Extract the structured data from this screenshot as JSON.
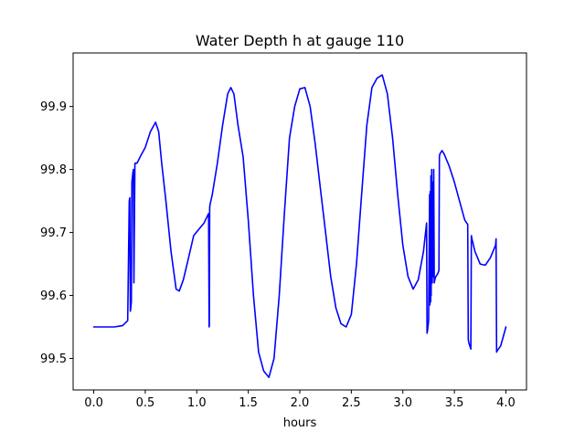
{
  "chart_data": {
    "type": "line",
    "title": "Water Depth h at gauge 110",
    "xlabel": "hours",
    "ylabel": "",
    "xlim": [
      -0.2,
      4.2
    ],
    "ylim": [
      99.45,
      99.985
    ],
    "grid": false,
    "x_ticks": [
      0.0,
      0.5,
      1.0,
      1.5,
      2.0,
      2.5,
      3.0,
      3.5,
      4.0
    ],
    "x_tick_labels": [
      "0.0",
      "0.5",
      "1.0",
      "1.5",
      "2.0",
      "2.5",
      "3.0",
      "3.5",
      "4.0"
    ],
    "y_ticks": [
      99.5,
      99.6,
      99.7,
      99.8,
      99.9
    ],
    "y_tick_labels": [
      "99.5",
      "99.6",
      "99.7",
      "99.8",
      "99.9"
    ],
    "series": [
      {
        "color": "#0000ff",
        "x": [
          0.0,
          0.1,
          0.2,
          0.28,
          0.33,
          0.345,
          0.35,
          0.355,
          0.36,
          0.365,
          0.37,
          0.38,
          0.385,
          0.39,
          0.4,
          0.42,
          0.425,
          0.43,
          0.45,
          0.5,
          0.55,
          0.6,
          0.63,
          0.66,
          0.7,
          0.75,
          0.8,
          0.83,
          0.87,
          0.92,
          0.97,
          1.02,
          1.07,
          1.1,
          1.115,
          1.12,
          1.122,
          1.125,
          1.13,
          1.15,
          1.2,
          1.25,
          1.3,
          1.33,
          1.36,
          1.4,
          1.45,
          1.5,
          1.55,
          1.6,
          1.65,
          1.7,
          1.75,
          1.8,
          1.85,
          1.9,
          1.95,
          2.0,
          2.05,
          2.1,
          2.15,
          2.2,
          2.25,
          2.3,
          2.35,
          2.4,
          2.45,
          2.5,
          2.55,
          2.6,
          2.65,
          2.7,
          2.75,
          2.8,
          2.85,
          2.9,
          2.95,
          3.0,
          3.05,
          3.1,
          3.15,
          3.2,
          3.23,
          3.235,
          3.24,
          3.25,
          3.26,
          3.262,
          3.265,
          3.27,
          3.272,
          3.275,
          3.28,
          3.285,
          3.29,
          3.295,
          3.3,
          3.305,
          3.31,
          3.32,
          3.34,
          3.35,
          3.355,
          3.36,
          3.38,
          3.4,
          3.45,
          3.5,
          3.55,
          3.6,
          3.62,
          3.63,
          3.635,
          3.64,
          3.65,
          3.66,
          3.665,
          3.67,
          3.7,
          3.75,
          3.8,
          3.85,
          3.9,
          3.905,
          3.91,
          3.915,
          3.95,
          4.0
        ],
        "values": [
          99.55,
          99.55,
          99.55,
          99.552,
          99.56,
          99.75,
          99.755,
          99.575,
          99.58,
          99.59,
          99.78,
          99.795,
          99.8,
          99.62,
          99.81,
          99.81,
          99.812,
          99.813,
          99.82,
          99.835,
          99.86,
          99.875,
          99.86,
          99.81,
          99.75,
          99.67,
          99.61,
          99.607,
          99.625,
          99.66,
          99.695,
          99.705,
          99.715,
          99.725,
          99.73,
          99.55,
          99.552,
          99.74,
          99.745,
          99.76,
          99.81,
          99.87,
          99.92,
          99.93,
          99.92,
          99.87,
          99.82,
          99.72,
          99.6,
          99.51,
          99.48,
          99.47,
          99.5,
          99.6,
          99.73,
          99.85,
          99.9,
          99.928,
          99.93,
          99.9,
          99.84,
          99.77,
          99.7,
          99.63,
          99.58,
          99.555,
          99.55,
          99.57,
          99.65,
          99.76,
          99.87,
          99.93,
          99.945,
          99.95,
          99.92,
          99.85,
          99.76,
          99.68,
          99.63,
          99.61,
          99.625,
          99.67,
          99.715,
          99.54,
          99.545,
          99.56,
          99.76,
          99.585,
          99.765,
          99.59,
          99.79,
          99.6,
          99.8,
          99.62,
          99.78,
          99.63,
          99.8,
          99.62,
          99.625,
          99.63,
          99.635,
          99.64,
          99.82,
          99.825,
          99.83,
          99.825,
          99.805,
          99.78,
          99.75,
          99.72,
          99.715,
          99.713,
          99.53,
          99.525,
          99.52,
          99.515,
          99.695,
          99.69,
          99.67,
          99.65,
          99.648,
          99.66,
          99.68,
          99.69,
          99.51,
          99.512,
          99.52,
          99.55
        ]
      }
    ]
  }
}
